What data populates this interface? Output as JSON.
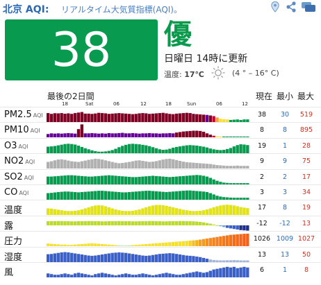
{
  "header": {
    "city": "北京 AQI:",
    "subtitle": "リアルタイム大気質指標(AQI)。",
    "icons": [
      "location-pin-icon",
      "share-icon",
      "chat-icon"
    ]
  },
  "summary": {
    "aqi": "38",
    "aqi_color": "#089a4e",
    "level": "優",
    "updated": "日曜日 14時に更新",
    "temp_label": "温度:",
    "temp_value": "17℃",
    "temp_range": "(4 ° – 16° C)",
    "weather_icon": "sun-icon"
  },
  "table": {
    "period_label": "最後の2日間",
    "col_current": "現在",
    "col_min": "最小",
    "col_max": "最大",
    "ticks": [
      "18",
      "Sat",
      "06",
      "12",
      "18",
      "Sun",
      "06",
      "12"
    ]
  },
  "rows": [
    {
      "key": "pm25",
      "label": "PM2.5",
      "unit": "AQI",
      "current": "38",
      "min": "30",
      "max": "519",
      "colors": [
        "#7e0023",
        "#660099",
        "#ffde33",
        "#089a4e"
      ],
      "values": [
        0.68,
        0.62,
        0.67,
        0.66,
        0.68,
        0.63,
        0.66,
        0.62,
        0.68,
        0.72,
        0.76,
        0.64,
        0.64,
        0.62,
        0.65,
        0.7,
        0.68,
        0.66,
        0.62,
        0.64,
        0.66,
        0.68,
        0.66,
        0.64,
        0.62,
        0.6,
        0.62,
        0.66,
        0.68,
        0.66,
        0.62,
        0.64,
        0.66,
        0.68,
        0.7,
        0.66,
        0.62,
        0.6,
        0.64,
        0.66,
        0.68,
        0.7,
        0.68,
        0.62,
        0.6,
        0.58,
        0.56,
        0.54,
        0.5,
        0.45,
        0.35,
        0.25,
        0.22,
        0.2,
        0.16,
        0.18,
        0.2,
        0.16,
        0.2,
        0.2
      ],
      "bands": [
        "#7e0023",
        "#7e0023",
        "#7e0023",
        "#7e0023",
        "#7e0023",
        "#7e0023",
        "#7e0023",
        "#7e0023",
        "#7e0023",
        "#7e0023",
        "#7e0023",
        "#7e0023",
        "#7e0023",
        "#7e0023",
        "#7e0023",
        "#7e0023",
        "#7e0023",
        "#7e0023",
        "#7e0023",
        "#7e0023",
        "#7e0023",
        "#7e0023",
        "#7e0023",
        "#7e0023",
        "#7e0023",
        "#7e0023",
        "#7e0023",
        "#7e0023",
        "#7e0023",
        "#7e0023",
        "#7e0023",
        "#7e0023",
        "#7e0023",
        "#7e0023",
        "#7e0023",
        "#7e0023",
        "#7e0023",
        "#7e0023",
        "#7e0023",
        "#7e0023",
        "#7e0023",
        "#7e0023",
        "#7e0023",
        "#7e0023",
        "#7e0023",
        "#7e0023",
        "#7e0023",
        "#660099",
        "#7e0023",
        "#cc0033",
        "#ff9933",
        "#ffde33",
        "#ffde33",
        "#ffde33",
        "#089a4e",
        "#089a4e",
        "#089a4e",
        "#089a4e",
        "#089a4e",
        "#089a4e"
      ]
    },
    {
      "key": "pm10",
      "label": "PM10",
      "unit": "AQI",
      "current": "8",
      "min": "8",
      "max": "895",
      "values": [
        0.25,
        0.3,
        0.28,
        0.3,
        0.28,
        0.3,
        0.32,
        0.3,
        0.28,
        0.62,
        0.98,
        0.3,
        0.3,
        0.32,
        0.3,
        0.28,
        0.3,
        0.28,
        0.32,
        0.3,
        0.3,
        0.32,
        0.34,
        0.3,
        0.3,
        0.32,
        0.3,
        0.28,
        0.3,
        0.3,
        0.32,
        0.3,
        0.3,
        0.28,
        0.3,
        0.3,
        0.32,
        0.3,
        0.36,
        0.4,
        0.44,
        0.46,
        0.48,
        0.5,
        0.5,
        0.48,
        0.42,
        0.3,
        0.2,
        0.12,
        0.08,
        0.06,
        0.06,
        0.06,
        0.06,
        0.06,
        0.06,
        0.06,
        0.06,
        0.06
      ],
      "bands": [
        "#660099",
        "#660099",
        "#660099",
        "#660099",
        "#660099",
        "#660099",
        "#660099",
        "#660099",
        "#660099",
        "#7e0023",
        "#7e0023",
        "#660099",
        "#660099",
        "#660099",
        "#660099",
        "#660099",
        "#660099",
        "#660099",
        "#660099",
        "#660099",
        "#660099",
        "#660099",
        "#660099",
        "#660099",
        "#660099",
        "#660099",
        "#660099",
        "#660099",
        "#660099",
        "#660099",
        "#660099",
        "#660099",
        "#660099",
        "#660099",
        "#660099",
        "#660099",
        "#660099",
        "#660099",
        "#7e0023",
        "#7e0023",
        "#7e0023",
        "#7e0023",
        "#7e0023",
        "#7e0023",
        "#7e0023",
        "#7e0023",
        "#7e0023",
        "#7e0023",
        "#7e0023",
        "#cc0033",
        "#ffde33",
        "#ffde33",
        "#089a4e",
        "#089a4e",
        "#089a4e",
        "#089a4e",
        "#089a4e",
        "#089a4e",
        "#089a4e",
        "#089a4e"
      ]
    },
    {
      "key": "o3",
      "label": "O3",
      "unit": "AQI",
      "current": "19",
      "min": "1",
      "max": "28",
      "color": "#089a4e",
      "values": [
        0.5,
        0.52,
        0.55,
        0.6,
        0.65,
        0.7,
        0.72,
        0.7,
        0.66,
        0.58,
        0.48,
        0.38,
        0.3,
        0.22,
        0.16,
        0.12,
        0.12,
        0.14,
        0.18,
        0.24,
        0.34,
        0.46,
        0.56,
        0.64,
        0.7,
        0.72,
        0.7,
        0.68,
        0.64,
        0.6,
        0.54,
        0.46,
        0.38,
        0.3,
        0.26,
        0.28,
        0.34,
        0.42,
        0.48,
        0.52,
        0.56,
        0.6,
        0.62,
        0.6,
        0.58,
        0.54,
        0.5,
        0.44,
        0.36,
        0.3,
        0.26,
        0.24,
        0.26,
        0.32,
        0.4,
        0.52,
        0.62,
        0.68,
        0.66,
        0.62
      ]
    },
    {
      "key": "no2",
      "label": "NO2",
      "unit": "AQI",
      "current": "9",
      "min": "9",
      "max": "75",
      "color": "#b0b0b0",
      "values": [
        0.5,
        0.55,
        0.62,
        0.68,
        0.7,
        0.66,
        0.6,
        0.55,
        0.52,
        0.5,
        0.55,
        0.6,
        0.66,
        0.7,
        0.74,
        0.72,
        0.68,
        0.62,
        0.56,
        0.5,
        0.44,
        0.4,
        0.42,
        0.46,
        0.5,
        0.55,
        0.6,
        0.62,
        0.58,
        0.54,
        0.5,
        0.52,
        0.56,
        0.62,
        0.68,
        0.72,
        0.74,
        0.7,
        0.64,
        0.58,
        0.52,
        0.48,
        0.46,
        0.44,
        0.42,
        0.4,
        0.38,
        0.36,
        0.34,
        0.3,
        0.26,
        0.24,
        0.22,
        0.2,
        0.2,
        0.2,
        0.22,
        0.2,
        0.2,
        0.2
      ]
    },
    {
      "key": "so2",
      "label": "SO2",
      "unit": "AQI",
      "current": "2",
      "min": "2",
      "max": "17",
      "color": "#089a4e",
      "values": [
        0.6,
        0.6,
        0.62,
        0.64,
        0.66,
        0.68,
        0.7,
        0.7,
        0.68,
        0.66,
        0.64,
        0.62,
        0.6,
        0.6,
        0.62,
        0.64,
        0.66,
        0.68,
        0.7,
        0.68,
        0.66,
        0.64,
        0.62,
        0.6,
        0.58,
        0.56,
        0.56,
        0.58,
        0.6,
        0.62,
        0.64,
        0.66,
        0.64,
        0.62,
        0.6,
        0.58,
        0.56,
        0.58,
        0.6,
        0.62,
        0.64,
        0.66,
        0.68,
        0.7,
        0.72,
        0.7,
        0.66,
        0.6,
        0.5,
        0.38,
        0.28,
        0.2,
        0.14,
        0.12,
        0.1,
        0.1,
        0.1,
        0.1,
        0.1,
        0.1
      ]
    },
    {
      "key": "co",
      "label": "CO",
      "unit": "AQI",
      "current": "3",
      "min": "3",
      "max": "34",
      "color": "#089a4e",
      "values": [
        0.5,
        0.52,
        0.55,
        0.58,
        0.6,
        0.62,
        0.62,
        0.6,
        0.58,
        0.56,
        0.58,
        0.6,
        0.62,
        0.64,
        0.66,
        0.68,
        0.68,
        0.66,
        0.64,
        0.62,
        0.6,
        0.58,
        0.56,
        0.56,
        0.58,
        0.6,
        0.62,
        0.64,
        0.66,
        0.68,
        0.68,
        0.66,
        0.64,
        0.62,
        0.6,
        0.58,
        0.6,
        0.62,
        0.64,
        0.66,
        0.68,
        0.7,
        0.7,
        0.68,
        0.66,
        0.64,
        0.62,
        0.58,
        0.5,
        0.4,
        0.3,
        0.24,
        0.2,
        0.18,
        0.16,
        0.15,
        0.15,
        0.15,
        0.15,
        0.15
      ]
    },
    {
      "key": "temp",
      "label": "温度",
      "unit": "",
      "current": "17",
      "min": "8",
      "max": "19",
      "color": "#e2e21a",
      "values": [
        0.5,
        0.48,
        0.44,
        0.4,
        0.36,
        0.32,
        0.3,
        0.3,
        0.32,
        0.36,
        0.42,
        0.5,
        0.58,
        0.66,
        0.72,
        0.74,
        0.72,
        0.66,
        0.58,
        0.5,
        0.42,
        0.36,
        0.32,
        0.3,
        0.3,
        0.32,
        0.36,
        0.42,
        0.5,
        0.58,
        0.66,
        0.72,
        0.76,
        0.76,
        0.74,
        0.7,
        0.64,
        0.58,
        0.52,
        0.46,
        0.4,
        0.36,
        0.32,
        0.3,
        0.3,
        0.32,
        0.36,
        0.42,
        0.5,
        0.58,
        0.66,
        0.72,
        0.76,
        0.78,
        0.76,
        0.72,
        0.66,
        0.6,
        0.56,
        0.52
      ]
    },
    {
      "key": "dew",
      "label": "露",
      "unit": "",
      "current": "-12",
      "min": "-12",
      "max": "13",
      "color": "#bada2c",
      "values": [
        0.5,
        0.5,
        0.5,
        0.52,
        0.52,
        0.5,
        0.5,
        0.48,
        0.48,
        0.5,
        0.5,
        0.5,
        0.52,
        0.52,
        0.5,
        0.5,
        0.48,
        0.48,
        0.5,
        0.5,
        0.5,
        0.52,
        0.5,
        0.5,
        0.5,
        0.48,
        0.48,
        0.5,
        0.5,
        0.5,
        0.52,
        0.52,
        0.5,
        0.5,
        0.48,
        0.48,
        0.5,
        0.5,
        0.5,
        0.52,
        0.52,
        0.5,
        0.5,
        0.48,
        0.46,
        0.42,
        0.36,
        0.28,
        0.2,
        0.1,
        0.02,
        -0.06,
        -0.12,
        -0.18,
        -0.22,
        -0.26,
        -0.3,
        -0.34,
        -0.36,
        -0.38
      ]
    },
    {
      "key": "pressure",
      "label": "圧力",
      "unit": "",
      "current": "1026",
      "min": "1009",
      "max": "1027",
      "color": "#f5c518",
      "values": [
        0.2,
        0.18,
        0.16,
        0.14,
        0.12,
        0.12,
        0.1,
        0.1,
        0.12,
        0.14,
        0.16,
        0.18,
        0.2,
        0.22,
        0.2,
        0.18,
        0.16,
        0.14,
        0.12,
        0.1,
        0.08,
        0.06,
        0.05,
        0.05,
        0.06,
        0.08,
        0.1,
        0.12,
        0.14,
        0.16,
        0.18,
        0.2,
        0.22,
        0.24,
        0.26,
        0.28,
        0.3,
        0.32,
        0.34,
        0.36,
        0.38,
        0.4,
        0.42,
        0.44,
        0.46,
        0.5,
        0.54,
        0.58,
        0.62,
        0.66,
        0.7,
        0.74,
        0.78,
        0.82,
        0.86,
        0.88,
        0.9,
        0.92,
        0.94,
        0.95
      ],
      "bands": [
        "#f5e030",
        "#f5e030",
        "#f5e030",
        "#f5e030",
        "#f5e030",
        "#f5e030",
        "#f5e030",
        "#f5e030",
        "#f5e030",
        "#f5e030",
        "#f5e030",
        "#f5e030",
        "#f5e030",
        "#f5e030",
        "#f5e030",
        "#f5e030",
        "#f5e030",
        "#f5e030",
        "#f5e030",
        "#f5e030",
        "#f5e030",
        "#aee8a0",
        "#aee8a0",
        "#aee8a0",
        "#aee8a0",
        "#f5e030",
        "#f5e030",
        "#f5e030",
        "#f5e030",
        "#f5e030",
        "#f5e030",
        "#f5e030",
        "#f5e030",
        "#f5e030",
        "#f5e030",
        "#f5e030",
        "#f5e030",
        "#f5e030",
        "#f5e030",
        "#f5e030",
        "#f5e030",
        "#f5e030",
        "#f5d030",
        "#f5c020",
        "#f5b020",
        "#f5a020",
        "#f59a20",
        "#f59020",
        "#f58820",
        "#f58420",
        "#f58020",
        "#f57c1a",
        "#f57818",
        "#f57418",
        "#f57018",
        "#f56c18",
        "#f56818",
        "#f56418",
        "#f56018",
        "#f56018"
      ]
    },
    {
      "key": "humidity",
      "label": "湿度",
      "unit": "",
      "current": "13",
      "min": "13",
      "max": "50",
      "color": "#3a60c8",
      "values": [
        0.6,
        0.62,
        0.66,
        0.7,
        0.74,
        0.76,
        0.74,
        0.7,
        0.66,
        0.62,
        0.58,
        0.54,
        0.5,
        0.48,
        0.5,
        0.54,
        0.58,
        0.62,
        0.66,
        0.7,
        0.72,
        0.74,
        0.72,
        0.7,
        0.66,
        0.62,
        0.58,
        0.54,
        0.5,
        0.48,
        0.5,
        0.54,
        0.58,
        0.62,
        0.64,
        0.66,
        0.68,
        0.66,
        0.62,
        0.58,
        0.54,
        0.5,
        0.48,
        0.46,
        0.42,
        0.38,
        0.32,
        0.26,
        0.2,
        0.16,
        0.14,
        0.13,
        0.13,
        0.14,
        0.14,
        0.15,
        0.14,
        0.13,
        0.13,
        0.13
      ],
      "fade_tail": true
    },
    {
      "key": "wind",
      "label": "風",
      "unit": "",
      "current": "6",
      "min": "1",
      "max": "8",
      "color": "#3a60c8",
      "values": [
        0.3,
        0.25,
        0.2,
        0.2,
        0.25,
        0.3,
        0.25,
        0.2,
        0.3,
        0.35,
        0.3,
        0.25,
        0.2,
        0.15,
        0.25,
        0.3,
        0.35,
        0.3,
        0.25,
        0.2,
        0.15,
        0.2,
        0.25,
        0.3,
        0.25,
        0.2,
        0.2,
        0.25,
        0.3,
        0.25,
        0.2,
        0.15,
        0.2,
        0.25,
        0.3,
        0.35,
        0.3,
        0.25,
        0.2,
        0.2,
        0.25,
        0.3,
        0.35,
        0.4,
        0.45,
        0.4,
        0.35,
        0.4,
        0.5,
        0.6,
        0.65,
        0.7,
        0.75,
        0.8,
        0.75,
        0.8,
        0.7,
        0.75,
        0.8,
        0.75
      ]
    }
  ]
}
